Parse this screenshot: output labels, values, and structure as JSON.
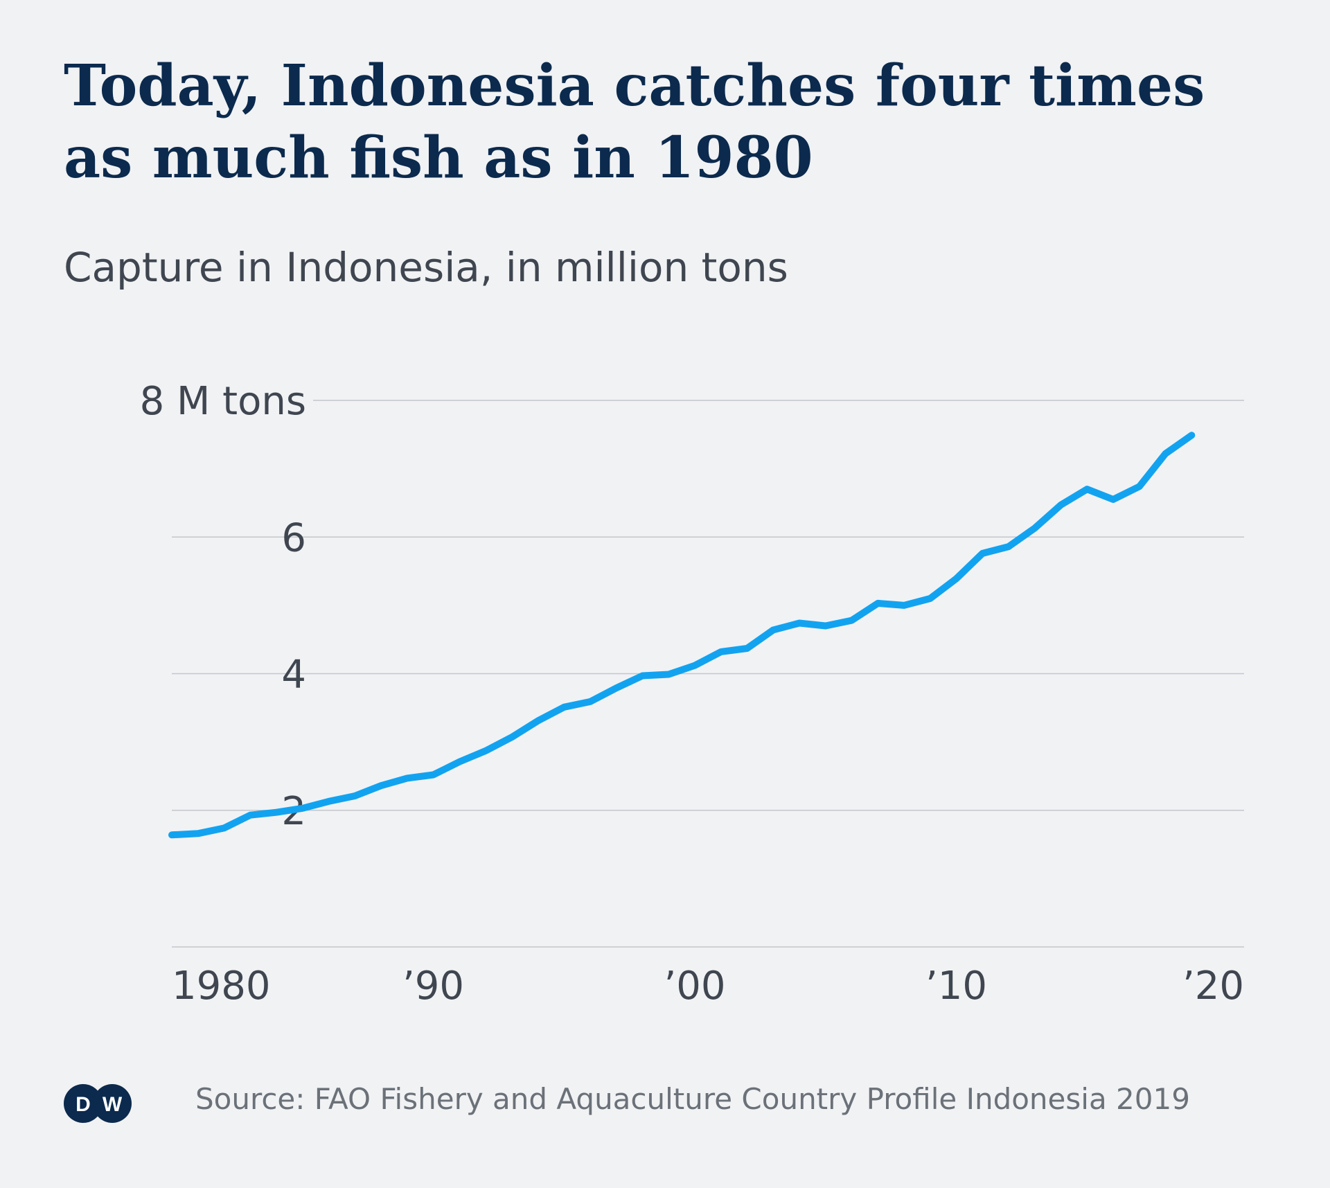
{
  "title": "Today, Indonesia catches four times as much fish as in 1980",
  "subtitle": "Capture in Indonesia, in million tons",
  "source": "Source: FAO Fishery and Aquaculture Country Profile Indonesia 2019",
  "logo_text": "DW",
  "colors": {
    "background": "#f1f2f4",
    "title": "#0b2a4d",
    "text": "#3f4650",
    "line": "#12a3f0",
    "grid": "#c3c6cb",
    "logo": "#0b2a4d"
  },
  "chart_data": {
    "type": "line",
    "title": "Today, Indonesia catches four times as much fish as in 1980",
    "subtitle": "Capture in Indonesia, in million tons",
    "xlabel": "",
    "ylabel": "",
    "xlim": [
      1980,
      2020
    ],
    "ylim": [
      0,
      8
    ],
    "grid": true,
    "legend": "none",
    "y_ticks": [
      {
        "value": 8,
        "label": "8 M tons"
      },
      {
        "value": 6,
        "label": "6"
      },
      {
        "value": 4,
        "label": "4"
      },
      {
        "value": 2,
        "label": "2"
      }
    ],
    "x_ticks": [
      {
        "value": 1980,
        "label": "1980"
      },
      {
        "value": 1990,
        "label": "’90"
      },
      {
        "value": 2000,
        "label": "’00"
      },
      {
        "value": 2010,
        "label": "’10"
      },
      {
        "value": 2020,
        "label": "’20"
      }
    ],
    "series": [
      {
        "x": [
          1980,
          1981,
          1982,
          1983,
          1984,
          1985,
          1986,
          1987,
          1988,
          1989,
          1990,
          1991,
          1992,
          1993,
          1994,
          1995,
          1996,
          1997,
          1998,
          1999,
          2000,
          2001,
          2002,
          2003,
          2004,
          2005,
          2006,
          2007,
          2008,
          2009,
          2010,
          2011,
          2012,
          2013,
          2014,
          2015,
          2016,
          2017,
          2018,
          2019
        ],
        "values": [
          1.64,
          1.66,
          1.74,
          1.93,
          1.97,
          2.03,
          2.13,
          2.21,
          2.36,
          2.47,
          2.52,
          2.71,
          2.87,
          3.07,
          3.31,
          3.51,
          3.59,
          3.79,
          3.97,
          3.99,
          4.12,
          4.32,
          4.37,
          4.64,
          4.74,
          4.7,
          4.78,
          5.03,
          5.0,
          5.1,
          5.39,
          5.76,
          5.86,
          6.13,
          6.47,
          6.7,
          6.55,
          6.74,
          7.22,
          7.49
        ]
      }
    ]
  }
}
